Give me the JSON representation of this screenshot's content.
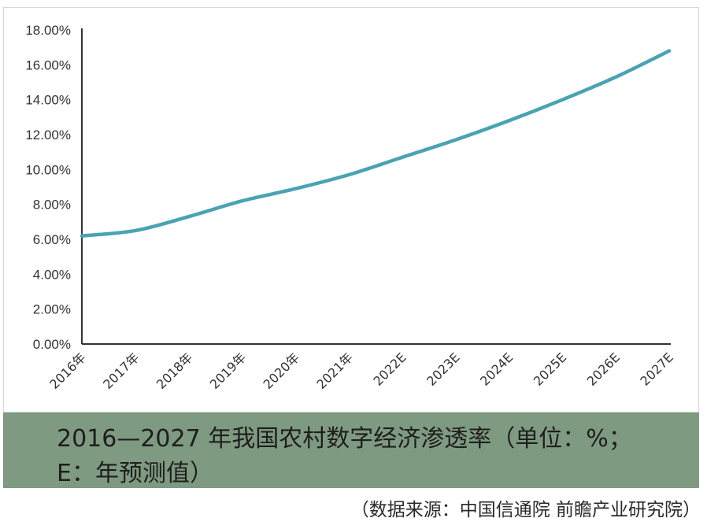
{
  "caption": {
    "line1": "2016—2027 年我国农村数字经济渗透率（单位：%；",
    "line2": "E：年预测值）"
  },
  "source_note": "（数据来源：中国信通院  前瞻产业研究院）",
  "colors": {
    "line": "#4aa3b2",
    "axis": "#333333",
    "caption_bg": "#7e9a80"
  },
  "chart_data": {
    "type": "line",
    "title": "",
    "xlabel": "",
    "ylabel": "",
    "categories": [
      "2016年",
      "2017年",
      "2018年",
      "2019年",
      "2020年",
      "2021年",
      "2022E",
      "2023E",
      "2024E",
      "2025E",
      "2026E",
      "2027E"
    ],
    "series": [
      {
        "values": [
          6.2,
          6.5,
          7.3,
          8.2,
          8.9,
          9.7,
          10.7,
          11.7,
          12.8,
          14.0,
          15.3,
          16.8
        ]
      }
    ],
    "y_ticks": [
      "0.00%",
      "2.00%",
      "4.00%",
      "6.00%",
      "8.00%",
      "10.00%",
      "12.00%",
      "14.00%",
      "16.00%",
      "18.00%"
    ],
    "ylim": [
      0,
      18
    ],
    "grid": false,
    "legend": "none"
  }
}
